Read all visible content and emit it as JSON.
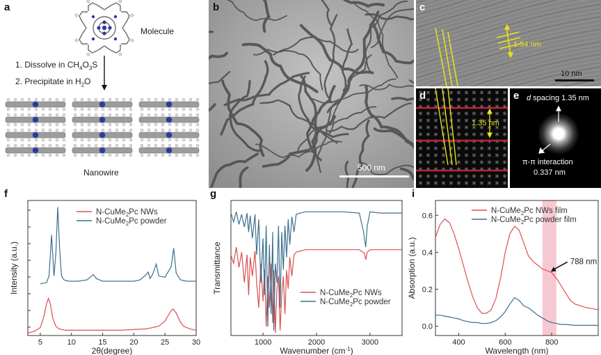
{
  "panels": {
    "a": {
      "letter": "a",
      "molecule_label": "Molecule",
      "step1_prefix": "1. Dissolve in CH",
      "step1_sub1": "4",
      "step1_mid": "O",
      "step1_sub2": "3",
      "step1_suffix": "S",
      "step2_prefix": "2. Precipitate in H",
      "step2_sub": "2",
      "step2_suffix": "O",
      "nanowire_label": "Nanowire"
    },
    "b": {
      "letter": "b",
      "scale_label": "500 nm"
    },
    "c": {
      "letter": "c",
      "spacing_label": "1.34 nm",
      "scale_label": "10 nm"
    },
    "d": {
      "letter": "d",
      "spacing_label": "1.35 nm"
    },
    "e": {
      "letter": "e",
      "d_italic": "d",
      "d_spacing_label": " spacing 1.35 nm",
      "pi_label": "π-π interaction",
      "pi_value": "0.337 nm"
    },
    "f": {
      "letter": "f",
      "chart_data": {
        "type": "line",
        "xlabel": "2θ(degree)",
        "ylabel": "Intensity (a.u.)",
        "xlim": [
          3,
          30
        ],
        "xticks": [
          5,
          10,
          15,
          20,
          25,
          30
        ],
        "legend": [
          {
            "pre": "N-CuMe",
            "sub": "2",
            "post": "Pc NWs",
            "color": "#d9504f"
          },
          {
            "pre": "N-CuMe",
            "sub": "2",
            "post": "Pc powder",
            "color": "#3d6f8e"
          }
        ],
        "series": [
          {
            "name": "N-CuMe2Pc NWs",
            "color": "#d9504f",
            "x": [
              3,
              4,
              5,
              5.5,
              6,
              6.3,
              6.6,
              7,
              7.5,
              8,
              9,
              10,
              12,
              15,
              18,
              20,
              22,
              24,
              25,
              25.5,
              26,
              26.3,
              26.8,
              27.5,
              28,
              29,
              30
            ],
            "y": [
              0.02,
              0.03,
              0.06,
              0.13,
              0.24,
              0.28,
              0.24,
              0.13,
              0.07,
              0.05,
              0.04,
              0.04,
              0.04,
              0.04,
              0.04,
              0.045,
              0.05,
              0.07,
              0.11,
              0.15,
              0.19,
              0.2,
              0.17,
              0.1,
              0.07,
              0.05,
              0.04
            ]
          },
          {
            "name": "N-CuMe2Pc powder",
            "color": "#3d6f8e",
            "x": [
              5,
              6,
              6.4,
              6.8,
              7.0,
              7.2,
              7.5,
              7.8,
              8.1,
              8.4,
              8.8,
              9.5,
              11,
              12.5,
              13,
              13.5,
              14,
              15,
              17,
              19,
              20,
              21,
              22,
              22.3,
              22.6,
              23,
              23.6,
              24,
              25,
              26,
              26.4,
              26.8,
              27.5,
              28.5,
              30
            ],
            "y": [
              0.39,
              0.4,
              0.45,
              0.76,
              0.6,
              0.45,
              0.62,
              0.97,
              0.66,
              0.45,
              0.42,
              0.41,
              0.41,
              0.42,
              0.44,
              0.46,
              0.43,
              0.41,
              0.41,
              0.41,
              0.41,
              0.42,
              0.46,
              0.48,
              0.43,
              0.46,
              0.54,
              0.45,
              0.44,
              0.52,
              0.66,
              0.47,
              0.42,
              0.41,
              0.41
            ]
          }
        ]
      }
    },
    "g": {
      "letter": "g",
      "chart_data": {
        "type": "line",
        "xlabel_pre": "Wavenumber (cm",
        "xlabel_sup": "-1",
        "xlabel_post": ")",
        "ylabel": "Transmittance",
        "xlim": [
          400,
          3600
        ],
        "xticks": [
          1000,
          2000,
          3000
        ],
        "legend": [
          {
            "pre": "N-CuMe",
            "sub": "2",
            "post": "Pc NWs",
            "color": "#d9504f"
          },
          {
            "pre": "N-CuMe",
            "sub": "2",
            "post": "Pc powder",
            "color": "#3d6f8e"
          }
        ],
        "series": [
          {
            "name": "N-CuMe2Pc NWs",
            "color": "#d9504f",
            "x": [
              400,
              450,
              500,
              550,
              600,
              650,
              700,
              730,
              760,
              800,
              850,
              880,
              920,
              960,
              1000,
              1030,
              1060,
              1090,
              1120,
              1150,
              1180,
              1200,
              1230,
              1260,
              1290,
              1320,
              1350,
              1380,
              1410,
              1440,
              1470,
              1500,
              1540,
              1580,
              1620,
              1700,
              1800,
              2000,
              2200,
              2500,
              2800,
              2900,
              2920,
              2950,
              3000,
              3200,
              3400,
              3600
            ],
            "y": [
              0.62,
              0.55,
              0.68,
              0.52,
              0.64,
              0.4,
              0.62,
              0.3,
              0.6,
              0.45,
              0.65,
              0.4,
              0.2,
              0.55,
              0.25,
              0.5,
              0.05,
              0.45,
              0.2,
              0.55,
              0.08,
              0.5,
              0.0,
              0.35,
              0.45,
              0.02,
              0.3,
              0.45,
              0.15,
              0.5,
              0.35,
              0.6,
              0.45,
              0.62,
              0.64,
              0.65,
              0.66,
              0.66,
              0.66,
              0.66,
              0.66,
              0.63,
              0.58,
              0.64,
              0.66,
              0.66,
              0.66,
              0.66
            ]
          },
          {
            "name": "N-CuMe2Pc powder",
            "color": "#3d6f8e",
            "x": [
              400,
              450,
              500,
              550,
              600,
              650,
              700,
              730,
              760,
              800,
              850,
              880,
              920,
              960,
              1000,
              1030,
              1060,
              1090,
              1120,
              1150,
              1180,
              1200,
              1230,
              1260,
              1290,
              1320,
              1350,
              1380,
              1410,
              1440,
              1470,
              1500,
              1540,
              1580,
              1620,
              1700,
              1800,
              2000,
              2200,
              2500,
              2800,
              2880,
              2920,
              2950,
              3000,
              3200,
              3400,
              3600
            ],
            "y": [
              0.95,
              0.88,
              0.96,
              0.86,
              0.94,
              0.84,
              0.95,
              0.8,
              0.93,
              0.75,
              0.94,
              0.62,
              0.9,
              0.4,
              0.75,
              0.3,
              0.85,
              0.05,
              0.7,
              0.15,
              0.8,
              0.02,
              0.55,
              0.4,
              0.85,
              0.2,
              0.8,
              0.5,
              0.85,
              0.6,
              0.9,
              0.7,
              0.92,
              0.8,
              0.94,
              0.95,
              0.96,
              0.96,
              0.96,
              0.96,
              0.95,
              0.8,
              0.68,
              0.85,
              0.96,
              0.95,
              0.95,
              0.95
            ]
          }
        ]
      }
    },
    "i": {
      "letter": "i",
      "annotation": "788 nm",
      "chart_data": {
        "type": "line",
        "xlabel": "Wavelength (nm)",
        "ylabel": "Absorption (a.u.)",
        "xlim": [
          300,
          1000
        ],
        "ylim": [
          -0.05,
          0.68
        ],
        "xticks": [
          400,
          600,
          800
        ],
        "yticks": [
          0.0,
          0.2,
          0.4,
          0.6
        ],
        "ytick_labels": [
          "0.0",
          "0.2",
          "0.4",
          "0.6"
        ],
        "highlight_range": [
          760,
          820
        ],
        "legend": [
          {
            "pre": "N-CuMe",
            "sub": "2",
            "post": "Pc NWs film",
            "color": "#d9504f"
          },
          {
            "pre": "N-CuMe",
            "sub": "2",
            "post": "Pc powder film",
            "color": "#3d6f8e"
          }
        ],
        "series": [
          {
            "name": "N-CuMe2Pc NWs film",
            "color": "#d9504f",
            "x": [
              300,
              320,
              340,
              360,
              380,
              400,
              420,
              440,
              460,
              480,
              500,
              520,
              540,
              560,
              580,
              600,
              620,
              640,
              660,
              680,
              700,
              720,
              740,
              760,
              780,
              800,
              820,
              840,
              860,
              880,
              900,
              950,
              1000
            ],
            "y": [
              0.48,
              0.55,
              0.58,
              0.56,
              0.5,
              0.42,
              0.33,
              0.24,
              0.16,
              0.1,
              0.07,
              0.07,
              0.09,
              0.15,
              0.26,
              0.4,
              0.5,
              0.54,
              0.52,
              0.45,
              0.38,
              0.35,
              0.33,
              0.31,
              0.3,
              0.29,
              0.26,
              0.22,
              0.18,
              0.14,
              0.12,
              0.1,
              0.09
            ]
          },
          {
            "name": "N-CuMe2Pc powder film",
            "color": "#3d6f8e",
            "x": [
              300,
              320,
              340,
              360,
              380,
              400,
              420,
              440,
              460,
              480,
              500,
              520,
              540,
              560,
              580,
              600,
              620,
              640,
              660,
              680,
              700,
              720,
              740,
              760,
              780,
              800,
              820,
              840,
              860,
              900,
              950,
              1000
            ],
            "y": [
              0.06,
              0.06,
              0.055,
              0.05,
              0.045,
              0.04,
              0.03,
              0.025,
              0.02,
              0.02,
              0.015,
              0.015,
              0.02,
              0.03,
              0.05,
              0.08,
              0.12,
              0.155,
              0.14,
              0.11,
              0.1,
              0.08,
              0.06,
              0.045,
              0.03,
              0.02,
              0.015,
              0.01,
              0.01,
              0.005,
              0.005,
              0.005
            ]
          }
        ]
      }
    }
  }
}
